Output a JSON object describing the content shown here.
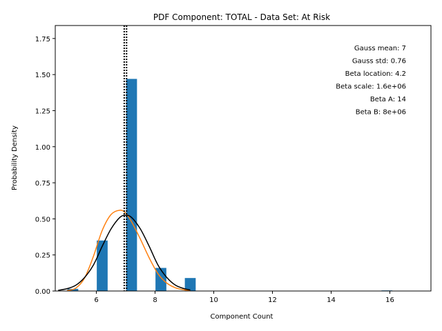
{
  "chart_data": {
    "type": "bar",
    "title": "PDF Component: TOTAL - Data Set: At Risk",
    "xlabel": "Component Count",
    "ylabel": "Probability Density",
    "xlim": [
      4.6,
      17.4
    ],
    "ylim": [
      0,
      1.84
    ],
    "xticks": [
      6,
      8,
      10,
      12,
      14,
      16
    ],
    "yticks": [
      0.0,
      0.25,
      0.5,
      0.75,
      1.0,
      1.25,
      1.5,
      1.75
    ],
    "ytick_labels": [
      "0.00",
      "0.25",
      "0.50",
      "0.75",
      "1.00",
      "1.25",
      "1.50",
      "1.75"
    ],
    "bar_width": 0.37,
    "bars": [
      {
        "x": 5.2,
        "value": 0.015
      },
      {
        "x": 6.2,
        "value": 0.35
      },
      {
        "x": 7.2,
        "value": 1.47
      },
      {
        "x": 8.2,
        "value": 0.16
      },
      {
        "x": 9.2,
        "value": 0.09
      },
      {
        "x": 15.9,
        "value": 0.004
      }
    ],
    "bar_color": "#1f77b4",
    "gauss_curve": {
      "color": "#000000",
      "x": [
        4.7,
        5.0,
        5.3,
        5.6,
        5.9,
        6.2,
        6.5,
        6.8,
        7.0,
        7.2,
        7.5,
        7.8,
        8.1,
        8.4,
        8.7,
        9.0,
        9.2
      ],
      "y": [
        0.005,
        0.016,
        0.04,
        0.094,
        0.18,
        0.31,
        0.43,
        0.51,
        0.525,
        0.51,
        0.43,
        0.31,
        0.18,
        0.094,
        0.04,
        0.016,
        0.007
      ]
    },
    "beta_curve": {
      "color": "#ff7f0e",
      "x": [
        5.0,
        5.3,
        5.6,
        5.9,
        6.2,
        6.5,
        6.8,
        7.0,
        7.2,
        7.5,
        7.8,
        8.1,
        8.4,
        8.7,
        9.0,
        9.2
      ],
      "y": [
        0.003,
        0.02,
        0.09,
        0.24,
        0.42,
        0.53,
        0.56,
        0.54,
        0.48,
        0.36,
        0.23,
        0.12,
        0.055,
        0.022,
        0.008,
        0.004
      ]
    },
    "vlines": [
      6.95,
      7.03
    ],
    "annotations": [
      "Gauss mean: 7",
      "Gauss std: 0.76",
      "Beta location: 4.2",
      "Beta scale: 1.6e+06",
      "Beta A: 14",
      "Beta B: 8e+06"
    ]
  }
}
